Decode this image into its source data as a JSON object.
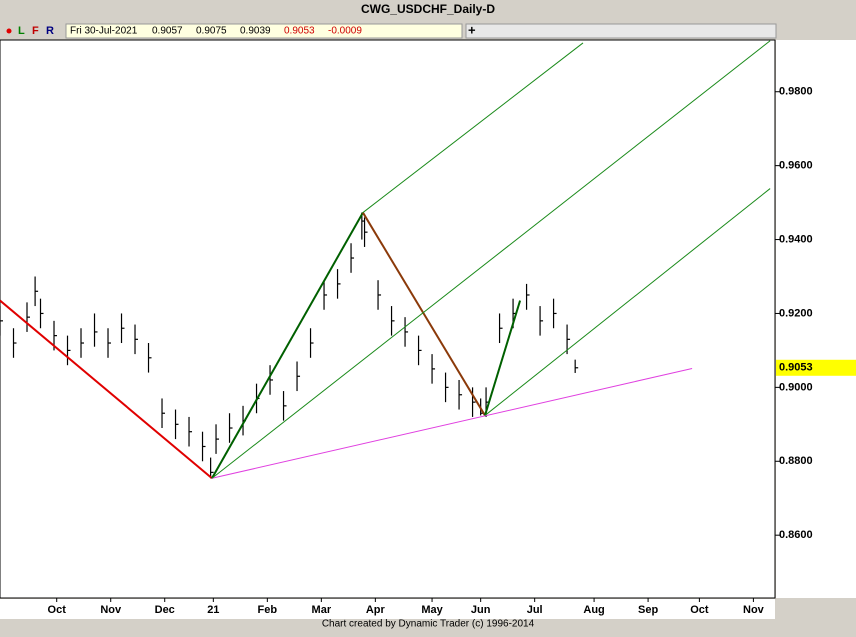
{
  "chart_data": {
    "type": "hlc",
    "title": "CWG_USDCHF_Daily-D",
    "toolbar": [
      "L",
      "F",
      "R"
    ],
    "info": {
      "date": "Fri 30-Jul-2021",
      "open": 0.9057,
      "high": 0.9075,
      "low": 0.9039,
      "close": 0.9053,
      "change": -0.0009
    },
    "last_price": 0.9053,
    "footer": "Chart created by Dynamic Trader  (c) 1996-2014",
    "color": "#000000",
    "x": [
      0,
      5,
      10,
      13,
      15,
      20,
      25,
      30,
      35,
      40,
      45,
      50,
      55,
      60,
      65,
      70,
      75,
      78,
      80,
      85,
      90,
      95,
      100,
      105,
      110,
      115,
      120,
      125,
      130,
      134,
      135,
      140,
      145,
      150,
      155,
      160,
      165,
      170,
      175,
      178,
      180,
      185,
      190,
      195,
      200,
      205,
      210,
      213
    ],
    "high": [
      0.922,
      0.916,
      0.923,
      0.93,
      0.924,
      0.918,
      0.914,
      0.916,
      0.92,
      0.916,
      0.92,
      0.917,
      0.912,
      0.897,
      0.894,
      0.892,
      0.888,
      0.881,
      0.89,
      0.893,
      0.895,
      0.901,
      0.906,
      0.899,
      0.907,
      0.916,
      0.929,
      0.932,
      0.939,
      0.9473,
      0.946,
      0.929,
      0.922,
      0.919,
      0.914,
      0.909,
      0.904,
      0.902,
      0.9,
      0.897,
      0.9,
      0.92,
      0.924,
      0.928,
      0.922,
      0.924,
      0.917,
      0.9075
    ],
    "low": [
      0.914,
      0.908,
      0.915,
      0.922,
      0.916,
      0.91,
      0.906,
      0.908,
      0.911,
      0.908,
      0.912,
      0.909,
      0.904,
      0.889,
      0.886,
      0.884,
      0.88,
      0.8754,
      0.882,
      0.885,
      0.887,
      0.893,
      0.898,
      0.891,
      0.899,
      0.908,
      0.921,
      0.924,
      0.931,
      0.94,
      0.938,
      0.921,
      0.914,
      0.911,
      0.906,
      0.901,
      0.896,
      0.894,
      0.892,
      0.8924,
      0.892,
      0.912,
      0.916,
      0.921,
      0.914,
      0.916,
      0.909,
      0.9039
    ],
    "close": [
      0.918,
      0.912,
      0.919,
      0.926,
      0.92,
      0.914,
      0.91,
      0.912,
      0.915,
      0.912,
      0.916,
      0.913,
      0.908,
      0.893,
      0.89,
      0.888,
      0.884,
      0.877,
      0.886,
      0.889,
      0.891,
      0.897,
      0.902,
      0.895,
      0.903,
      0.912,
      0.925,
      0.928,
      0.935,
      0.945,
      0.942,
      0.925,
      0.918,
      0.915,
      0.91,
      0.905,
      0.9,
      0.898,
      0.896,
      0.893,
      0.896,
      0.916,
      0.92,
      0.925,
      0.918,
      0.92,
      0.913,
      0.9053
    ],
    "lines": [
      {
        "color": "#e00000",
        "x": [
          0,
          78.5
        ],
        "y": [
          0.9235,
          0.8754
        ]
      },
      {
        "color": "#006000",
        "x": [
          78.5,
          134.4
        ],
        "y": [
          0.8754,
          0.9473
        ]
      },
      {
        "color": "#8b3a0a",
        "x": [
          134.4,
          179.6
        ],
        "y": [
          0.9473,
          0.8924
        ]
      },
      {
        "color": "#006000",
        "x": [
          179.6,
          192.6
        ],
        "y": [
          0.8924,
          0.9235
        ]
      },
      {
        "color": "#e040e0",
        "x": [
          78.5,
          256.3
        ],
        "y": [
          0.8754,
          0.9051
        ]
      },
      {
        "color": "#1a8a1a",
        "x": [
          134.4,
          215.9
        ],
        "y": [
          0.9473,
          0.9932
        ]
      },
      {
        "color": "#1a8a1a",
        "x": [
          78.5,
          285.2
        ],
        "y": [
          0.8754,
          0.9938
        ]
      },
      {
        "color": "#1a8a1a",
        "x": [
          179.6,
          285.2
        ],
        "y": [
          0.8924,
          0.9538
        ]
      }
    ],
    "xlim": [
      0,
      287
    ],
    "xticks": [
      {
        "value": 21,
        "label": "Oct"
      },
      {
        "value": 41,
        "label": "Nov"
      },
      {
        "value": 61,
        "label": "Dec"
      },
      {
        "value": 79,
        "label": "21"
      },
      {
        "value": 99,
        "label": "Feb"
      },
      {
        "value": 119,
        "label": "Mar"
      },
      {
        "value": 139,
        "label": "Apr"
      },
      {
        "value": 160,
        "label": "May"
      },
      {
        "value": 178,
        "label": "Jun"
      },
      {
        "value": 198,
        "label": "Jul"
      },
      {
        "value": 220,
        "label": "Aug"
      },
      {
        "value": 240,
        "label": "Sep"
      },
      {
        "value": 259,
        "label": "Oct"
      },
      {
        "value": 279,
        "label": "Nov"
      }
    ],
    "ylim": [
      0.843,
      0.994
    ],
    "yticks": [
      {
        "value": 0.98,
        "label": "0.9800"
      },
      {
        "value": 0.96,
        "label": "0.9600"
      },
      {
        "value": 0.94,
        "label": "0.9400"
      },
      {
        "value": 0.92,
        "label": "0.9200"
      },
      {
        "value": 0.9,
        "label": "0.9000"
      },
      {
        "value": 0.88,
        "label": "0.8800"
      },
      {
        "value": 0.86,
        "label": "0.8600"
      }
    ]
  }
}
